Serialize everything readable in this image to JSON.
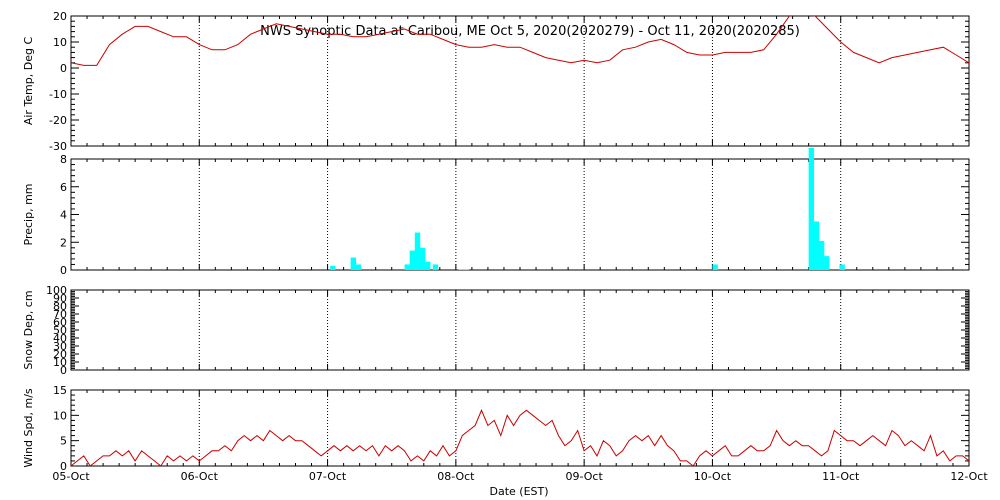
{
  "title": "NWS Synoptic Data at Caribou, ME   Oct  5, 2020(2020279) - Oct 11, 2020(2020285)",
  "x_axis": {
    "label": "Date (EST)",
    "ticks": [
      "05-Oct",
      "06-Oct",
      "07-Oct",
      "08-Oct",
      "09-Oct",
      "10-Oct",
      "11-Oct",
      "12-Oct"
    ],
    "range_days": [
      0,
      7
    ]
  },
  "colors": {
    "temp": "#cc0000",
    "precip": "#00ffff",
    "wind": "#cc0000",
    "grid": "#000000"
  },
  "chart_data": [
    {
      "type": "line",
      "name": "temp",
      "ylabel": "Air Temp, Deg C",
      "ylim": [
        -30,
        20
      ],
      "yticks": [
        -30,
        -20,
        -10,
        0,
        10,
        20
      ],
      "grid": "dotted-daily",
      "x": [
        0,
        0.1,
        0.2,
        0.3,
        0.4,
        0.5,
        0.6,
        0.7,
        0.8,
        0.9,
        1.0,
        1.1,
        1.2,
        1.3,
        1.4,
        1.5,
        1.6,
        1.7,
        1.8,
        1.9,
        2.0,
        2.1,
        2.2,
        2.3,
        2.4,
        2.5,
        2.6,
        2.7,
        2.8,
        2.9,
        3.0,
        3.1,
        3.2,
        3.3,
        3.4,
        3.5,
        3.6,
        3.7,
        3.8,
        3.9,
        4.0,
        4.1,
        4.2,
        4.3,
        4.4,
        4.5,
        4.6,
        4.7,
        4.8,
        4.9,
        5.0,
        5.1,
        5.2,
        5.3,
        5.4,
        5.5,
        5.6,
        5.7,
        5.8,
        5.9,
        6.0,
        6.1,
        6.2,
        6.3,
        6.4,
        6.5,
        6.6,
        6.7,
        6.8,
        6.9,
        7.0
      ],
      "y": [
        2,
        1,
        1,
        9,
        13,
        16,
        16,
        14,
        12,
        12,
        9,
        7,
        7,
        9,
        13,
        15,
        17,
        16,
        15,
        14,
        13,
        13,
        12,
        12,
        13,
        14,
        15,
        13,
        13,
        11,
        9,
        8,
        8,
        9,
        8,
        8,
        6,
        4,
        3,
        2,
        3,
        2,
        3,
        7,
        8,
        10,
        11,
        9,
        6,
        5,
        5,
        6,
        6,
        6,
        7,
        13,
        20,
        21,
        20,
        15,
        10,
        6,
        4,
        2,
        4,
        5,
        6,
        7,
        8,
        5,
        2
      ],
      "y_clipped_above": 20
    },
    {
      "type": "bar",
      "name": "precip",
      "ylabel": "Precip, mm",
      "ylim": [
        0,
        8
      ],
      "yticks": [
        0,
        2,
        4,
        6,
        8
      ],
      "bar_width_days": 0.042,
      "x": [
        0.02,
        0.18,
        0.22,
        0.6,
        0.64,
        0.68,
        0.72,
        0.76,
        0.82,
        1.02,
        1.06,
        3.0,
        3.75,
        3.79,
        3.83,
        3.87,
        3.99
      ],
      "x_offset_days": 2,
      "values": [
        0.3,
        0.9,
        0.4,
        0.4,
        1.4,
        2.7,
        1.6,
        0.6,
        0.4,
        0.05,
        0.05,
        0.4,
        8.8,
        3.5,
        2.1,
        1.0,
        0.4
      ]
    },
    {
      "type": "line",
      "name": "snow",
      "ylabel": "Snow Dep, cm",
      "ylim": [
        0,
        100
      ],
      "yticks": [
        0,
        10,
        20,
        30,
        40,
        50,
        60,
        70,
        80,
        90,
        100
      ],
      "x": [],
      "y": []
    },
    {
      "type": "line",
      "name": "wind",
      "ylabel": "Wind Spd, m/s",
      "ylim": [
        0,
        15
      ],
      "yticks": [
        0,
        5,
        10,
        15
      ],
      "x": [
        0,
        0.05,
        0.1,
        0.15,
        0.2,
        0.25,
        0.3,
        0.35,
        0.4,
        0.45,
        0.5,
        0.55,
        0.6,
        0.65,
        0.7,
        0.75,
        0.8,
        0.85,
        0.9,
        0.95,
        1.0,
        1.05,
        1.1,
        1.15,
        1.2,
        1.25,
        1.3,
        1.35,
        1.4,
        1.45,
        1.5,
        1.55,
        1.6,
        1.65,
        1.7,
        1.75,
        1.8,
        1.85,
        1.9,
        1.95,
        2.0,
        2.05,
        2.1,
        2.15,
        2.2,
        2.25,
        2.3,
        2.35,
        2.4,
        2.45,
        2.5,
        2.55,
        2.6,
        2.65,
        2.7,
        2.75,
        2.8,
        2.85,
        2.9,
        2.95,
        3.0,
        3.05,
        3.1,
        3.15,
        3.2,
        3.25,
        3.3,
        3.35,
        3.4,
        3.45,
        3.5,
        3.55,
        3.6,
        3.65,
        3.7,
        3.75,
        3.8,
        3.85,
        3.9,
        3.95,
        4.0,
        4.05,
        4.1,
        4.15,
        4.2,
        4.25,
        4.3,
        4.35,
        4.4,
        4.45,
        4.5,
        4.55,
        4.6,
        4.65,
        4.7,
        4.75,
        4.8,
        4.85,
        4.9,
        4.95,
        5.0,
        5.05,
        5.1,
        5.15,
        5.2,
        5.25,
        5.3,
        5.35,
        5.4,
        5.45,
        5.5,
        5.55,
        5.6,
        5.65,
        5.7,
        5.75,
        5.8,
        5.85,
        5.9,
        5.95,
        6.0,
        6.05,
        6.1,
        6.15,
        6.2,
        6.25,
        6.3,
        6.35,
        6.4,
        6.45,
        6.5,
        6.55,
        6.6,
        6.65,
        6.7,
        6.75,
        6.8,
        6.85,
        6.9,
        6.95,
        7.0
      ],
      "y": [
        0,
        1,
        2,
        0,
        1,
        2,
        2,
        3,
        2,
        3,
        1,
        3,
        2,
        1,
        0,
        2,
        1,
        2,
        1,
        2,
        1,
        2,
        3,
        3,
        4,
        3,
        5,
        6,
        5,
        6,
        5,
        7,
        6,
        5,
        6,
        5,
        5,
        4,
        3,
        2,
        3,
        4,
        3,
        4,
        3,
        4,
        3,
        4,
        2,
        4,
        3,
        4,
        3,
        1,
        2,
        1,
        3,
        2,
        4,
        2,
        3,
        6,
        7,
        8,
        11,
        8,
        9,
        6,
        10,
        8,
        10,
        11,
        10,
        9,
        8,
        9,
        6,
        4,
        5,
        7,
        3,
        4,
        2,
        5,
        4,
        2,
        3,
        5,
        6,
        5,
        6,
        4,
        6,
        4,
        3,
        1,
        1,
        0,
        2,
        3,
        2,
        3,
        4,
        2,
        2,
        3,
        4,
        3,
        3,
        4,
        7,
        5,
        4,
        5,
        4,
        4,
        3,
        2,
        3,
        7,
        6,
        5,
        5,
        4,
        5,
        6,
        5,
        4,
        7,
        6,
        4,
        5,
        4,
        3,
        6,
        2,
        3,
        1,
        2,
        2,
        1
      ]
    }
  ]
}
